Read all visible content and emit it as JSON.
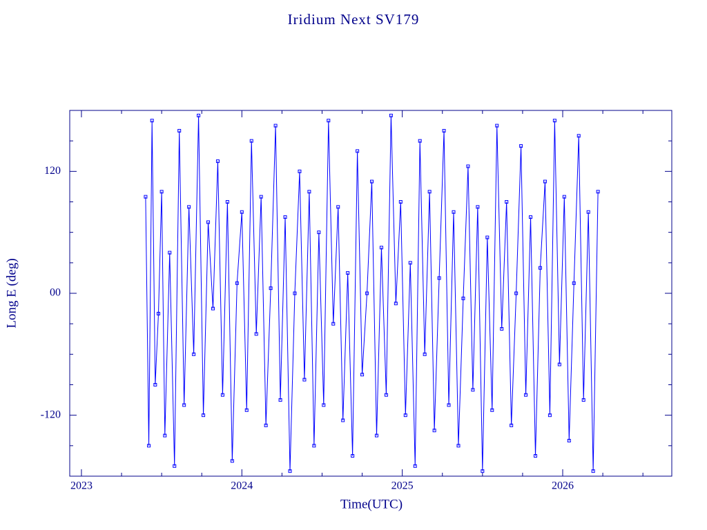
{
  "chart_data": {
    "type": "line",
    "title": "Iridium Next SV179",
    "xlabel": "Time(UTC)",
    "ylabel": "Long E (deg)",
    "x": [
      2023.4,
      2023.42,
      2023.44,
      2023.46,
      2023.48,
      2023.5,
      2023.52,
      2023.55,
      2023.58,
      2023.61,
      2023.64,
      2023.67,
      2023.7,
      2023.73,
      2023.76,
      2023.79,
      2023.82,
      2023.85,
      2023.88,
      2023.91,
      2023.94,
      2023.97,
      2024.0,
      2024.03,
      2024.06,
      2024.09,
      2024.12,
      2024.15,
      2024.18,
      2024.21,
      2024.24,
      2024.27,
      2024.3,
      2024.33,
      2024.36,
      2024.39,
      2024.42,
      2024.45,
      2024.48,
      2024.51,
      2024.54,
      2024.57,
      2024.6,
      2024.63,
      2024.66,
      2024.69,
      2024.72,
      2024.75,
      2024.78,
      2024.81,
      2024.84,
      2024.87,
      2024.9,
      2024.93,
      2024.96,
      2024.99,
      2025.02,
      2025.05,
      2025.08,
      2025.11,
      2025.14,
      2025.17,
      2025.2,
      2025.23,
      2025.26,
      2025.29,
      2025.32,
      2025.35,
      2025.38,
      2025.41,
      2025.44,
      2025.47,
      2025.5,
      2025.53,
      2025.56,
      2025.59,
      2025.62,
      2025.65,
      2025.68,
      2025.71,
      2025.74,
      2025.77,
      2025.8,
      2025.83,
      2025.86,
      2025.89,
      2025.92,
      2025.95,
      2025.98,
      2026.01,
      2026.04,
      2026.07,
      2026.1,
      2026.13,
      2026.16,
      2026.19,
      2026.22
    ],
    "series": [
      {
        "color": "#0000ff",
        "values": [
          95,
          -150,
          170,
          -90,
          -20,
          100,
          -140,
          40,
          -170,
          160,
          -110,
          85,
          -60,
          175,
          -120,
          70,
          -15,
          130,
          -100,
          90,
          -165,
          10,
          80,
          -115,
          150,
          -40,
          95,
          -130,
          5,
          165,
          -105,
          75,
          -175,
          0,
          120,
          -85,
          100,
          -150,
          60,
          -110,
          170,
          -30,
          85,
          -125,
          20,
          -160,
          140,
          -80,
          0,
          110,
          -140,
          45,
          -100,
          175,
          -10,
          90,
          -120,
          30,
          -170,
          150,
          -60,
          100,
          -135,
          15,
          160,
          -110,
          80,
          -150,
          -5,
          125,
          -95,
          85,
          -175,
          55,
          -115,
          165,
          -35,
          90,
          -130,
          0,
          145,
          -100,
          75,
          -160,
          25,
          110,
          -120,
          170,
          -70,
          95,
          -145,
          10,
          155,
          -105,
          80,
          -175,
          100
        ]
      }
    ],
    "xlim": [
      2022.927,
      2026.68
    ],
    "xticks": [
      2023,
      2024,
      2025,
      2026
    ],
    "xminorticks": [
      2023.25,
      2023.5,
      2023.75,
      2024.25,
      2024.5,
      2024.75,
      2025.25,
      2025.5,
      2025.75,
      2026.25,
      2026.5
    ],
    "ylim": [
      -180,
      180
    ],
    "yticks": [
      -120,
      {
        "value": 0,
        "label": "00"
      },
      120
    ],
    "yminorticks": [
      -150,
      -90,
      -60,
      -30,
      30,
      60,
      90,
      150
    ],
    "axis_color": "#00008b"
  }
}
